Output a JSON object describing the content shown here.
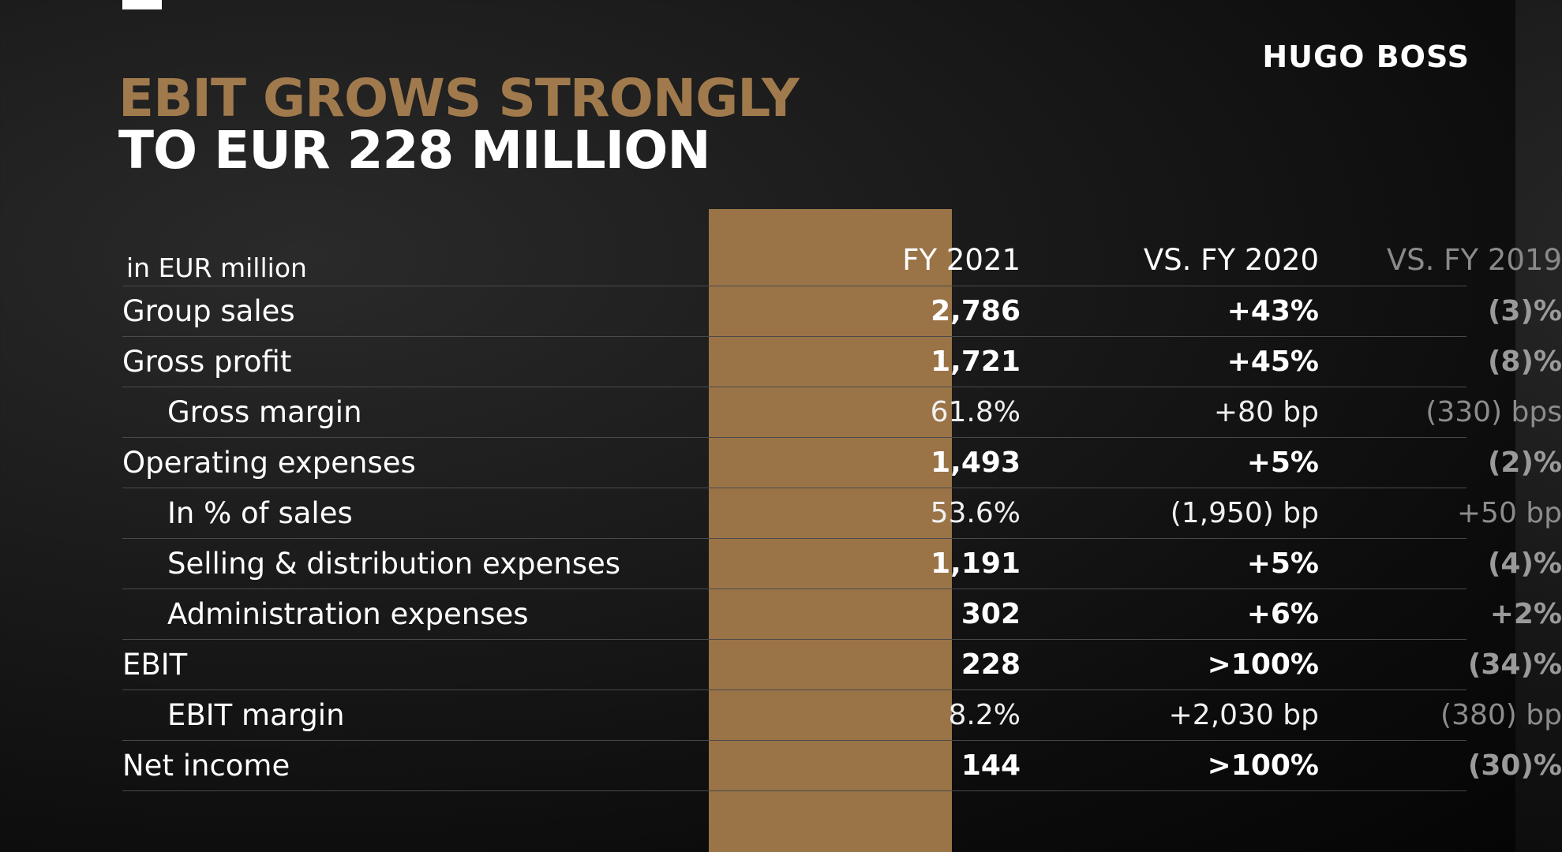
{
  "header": {
    "logo": "HUGO BOSS",
    "title_line1": "EBIT GROWS STRONGLY",
    "title_line2": "TO EUR 228 MILLION"
  },
  "table": {
    "columns": {
      "label": "in EUR million",
      "fy2021": "FY 2021",
      "vs_fy2020": "VS. FY 2020",
      "vs_fy2019": "VS. FY 2019"
    },
    "rows": [
      {
        "label": "Group sales",
        "fy2021": "2,786",
        "vs_fy2020": "+43%",
        "vs_fy2019": "(3)%"
      },
      {
        "label": "Gross profit",
        "fy2021": "1,721",
        "vs_fy2020": "+45%",
        "vs_fy2019": "(8)%"
      },
      {
        "label": "Gross margin",
        "fy2021": "61.8%",
        "vs_fy2020": "+80 bp",
        "vs_fy2019": "(330) bps"
      },
      {
        "label": "Operating expenses",
        "fy2021": "1,493",
        "vs_fy2020": "+5%",
        "vs_fy2019": "(2)%"
      },
      {
        "label": "In % of sales",
        "fy2021": "53.6%",
        "vs_fy2020": "(1,950) bp",
        "vs_fy2019": "+50 bp"
      },
      {
        "label": "Selling & distribution expenses",
        "fy2021": "1,191",
        "vs_fy2020": "+5%",
        "vs_fy2019": "(4)%"
      },
      {
        "label": "Administration expenses",
        "fy2021": "302",
        "vs_fy2020": "+6%",
        "vs_fy2019": "+2%"
      },
      {
        "label": "EBIT",
        "fy2021": "228",
        "vs_fy2020": ">100%",
        "vs_fy2019": "(34)%"
      },
      {
        "label": "EBIT margin",
        "fy2021": "8.2%",
        "vs_fy2020": "+2,030 bp",
        "vs_fy2019": "(380) bp"
      },
      {
        "label": "Net income",
        "fy2021": "144",
        "vs_fy2020": ">100%",
        "vs_fy2019": "(30)%"
      }
    ]
  },
  "colors": {
    "accent_gold": "#a07a4c",
    "column_highlight": "#9a7447",
    "background": "#141414"
  }
}
